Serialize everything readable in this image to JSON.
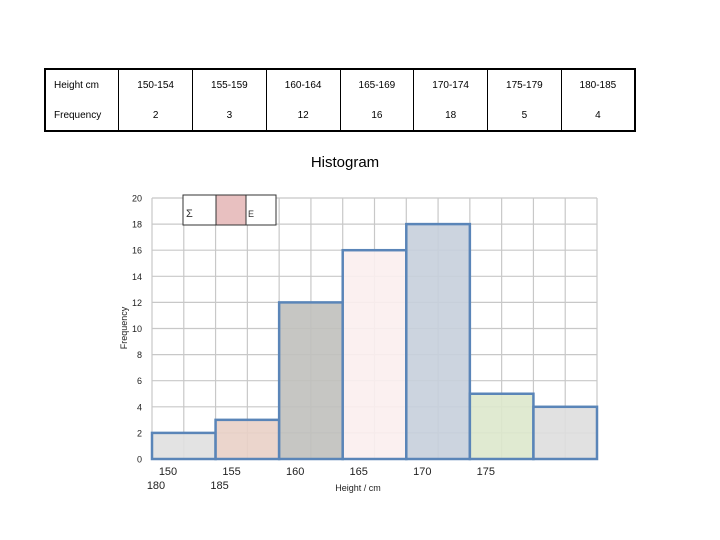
{
  "table": {
    "rows": [
      {
        "label": "Height cm",
        "cells": [
          "150-154",
          "155-159",
          "160-164",
          "165-169",
          "170-174",
          "175-179",
          "180-185"
        ]
      },
      {
        "label": "Frequency",
        "cells": [
          "2",
          "3",
          "12",
          "16",
          "18",
          "5",
          "4"
        ]
      }
    ]
  },
  "chart_data": {
    "type": "bar",
    "title": "Histogram",
    "xlabel": "Height / cm",
    "ylabel": "Frequency",
    "ylim": [
      0,
      20
    ],
    "yticks": [
      0,
      2,
      4,
      6,
      8,
      10,
      12,
      14,
      16,
      18,
      20
    ],
    "categories": [
      "150-154",
      "155-159",
      "160-164",
      "165-169",
      "170-174",
      "175-179",
      "180-185"
    ],
    "values": [
      2,
      3,
      12,
      16,
      18,
      5,
      4
    ],
    "bar_fills": [
      "#e0e0e0",
      "#e9d0c6",
      "#c0c0bc",
      "#fbeeee",
      "#c7cfdc",
      "#dde8cc",
      "#dedede"
    ],
    "bar_stroke": "#5a85b8",
    "xtick_labels": [
      {
        "label": "150\n180",
        "at": 0
      },
      {
        "label": "155\n185",
        "at": 1
      },
      {
        "label": "160",
        "at": 2
      },
      {
        "label": "165",
        "at": 3
      },
      {
        "label": "170",
        "at": 4
      },
      {
        "label": "175",
        "at": 5
      }
    ],
    "legend_glyphs": [
      "Σ",
      "Ε"
    ],
    "legend_swatch": "#e8c0c0",
    "grid": true
  }
}
